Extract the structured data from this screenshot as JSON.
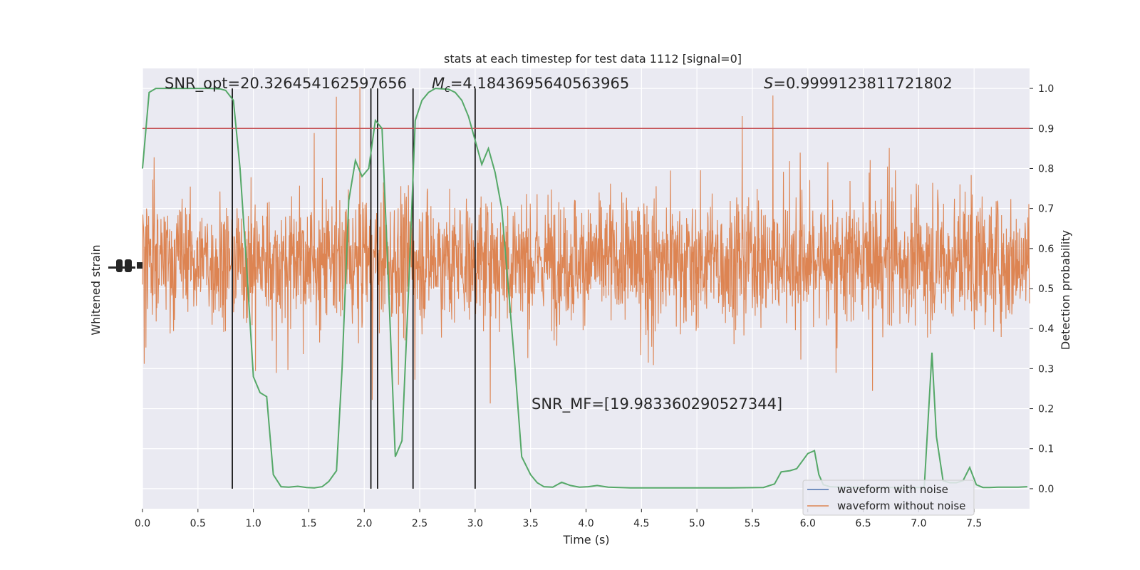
{
  "chart_data": {
    "type": "line",
    "title": "stats at each timestep for test data 1112 [signal=0]",
    "xlabel": "Time (s)",
    "ylabel_left": "Whitened strain",
    "ylabel_right": "Detection probability",
    "xlim": [
      0.0,
      8.0
    ],
    "ylim_right": [
      -0.05,
      1.05
    ],
    "x_ticks": [
      "0.0",
      "0.5",
      "1.0",
      "1.5",
      "2.0",
      "2.5",
      "3.0",
      "3.5",
      "4.0",
      "4.5",
      "5.0",
      "5.5",
      "6.0",
      "6.5",
      "7.0",
      "7.5"
    ],
    "y_ticks_right": [
      "0.0",
      "0.1",
      "0.2",
      "0.3",
      "0.4",
      "0.5",
      "0.6",
      "0.7",
      "0.8",
      "0.9",
      "1.0"
    ],
    "grid": true,
    "legend_position": "lower-right",
    "annotations": {
      "snr_opt": "SNR_opt=20.326454162597656",
      "mc_symbol": "M",
      "mc_subscript": "c",
      "mc_value": "=4.1843695640563965",
      "s_symbol": "S",
      "s_value": "=0.9999123811721802",
      "snr_mf": "SNR_MF=[19.983360290527344]"
    },
    "threshold": {
      "y": 0.9,
      "color": "#c44e52"
    },
    "vertical_lines_x": [
      0.81,
      2.06,
      2.12,
      2.44,
      3.0
    ],
    "series": [
      {
        "name": "waveform with noise",
        "color": "#4c72b0"
      },
      {
        "name": "waveform without noise",
        "color": "#dd8452"
      }
    ],
    "detection_probability": {
      "color": "#55a868",
      "x": [
        0.0,
        0.06,
        0.12,
        0.2,
        0.3,
        0.4,
        0.5,
        0.6,
        0.7,
        0.75,
        0.82,
        0.88,
        0.94,
        1.0,
        1.06,
        1.12,
        1.18,
        1.25,
        1.32,
        1.4,
        1.48,
        1.55,
        1.62,
        1.68,
        1.75,
        1.8,
        1.86,
        1.92,
        1.98,
        2.04,
        2.1,
        2.16,
        2.22,
        2.28,
        2.34,
        2.4,
        2.46,
        2.52,
        2.58,
        2.64,
        2.7,
        2.76,
        2.82,
        2.88,
        2.94,
        3.0,
        3.06,
        3.12,
        3.18,
        3.24,
        3.3,
        3.36,
        3.42,
        3.5,
        3.56,
        3.62,
        3.7,
        3.78,
        3.86,
        3.94,
        4.02,
        4.1,
        4.2,
        4.3,
        4.4,
        4.5,
        4.7,
        5.0,
        5.3,
        5.6,
        5.7,
        5.76,
        5.84,
        5.9,
        6.0,
        6.06,
        6.1,
        6.14,
        6.2,
        6.3,
        6.4,
        6.5,
        6.7,
        6.9,
        7.0,
        7.05,
        7.12,
        7.16,
        7.22,
        7.28,
        7.34,
        7.4,
        7.46,
        7.52,
        7.58,
        7.64,
        7.72,
        7.8,
        7.9,
        7.98
      ],
      "y": [
        0.8,
        0.99,
        1.0,
        1.0,
        1.0,
        1.0,
        1.0,
        1.0,
        0.999,
        0.995,
        0.97,
        0.8,
        0.55,
        0.28,
        0.24,
        0.23,
        0.035,
        0.005,
        0.004,
        0.006,
        0.003,
        0.002,
        0.005,
        0.018,
        0.045,
        0.3,
        0.72,
        0.82,
        0.78,
        0.8,
        0.92,
        0.9,
        0.5,
        0.08,
        0.12,
        0.5,
        0.92,
        0.97,
        0.99,
        1.0,
        0.999,
        0.998,
        0.99,
        0.97,
        0.93,
        0.87,
        0.81,
        0.85,
        0.79,
        0.7,
        0.5,
        0.3,
        0.08,
        0.035,
        0.015,
        0.005,
        0.004,
        0.016,
        0.008,
        0.004,
        0.005,
        0.008,
        0.004,
        0.003,
        0.002,
        0.002,
        0.002,
        0.002,
        0.002,
        0.003,
        0.012,
        0.042,
        0.045,
        0.05,
        0.088,
        0.095,
        0.035,
        0.01,
        0.005,
        0.004,
        0.004,
        0.003,
        0.003,
        0.003,
        0.003,
        0.003,
        0.34,
        0.13,
        0.02,
        0.015,
        0.015,
        0.02,
        0.053,
        0.01,
        0.003,
        0.003,
        0.004,
        0.004,
        0.004,
        0.005
      ]
    }
  }
}
